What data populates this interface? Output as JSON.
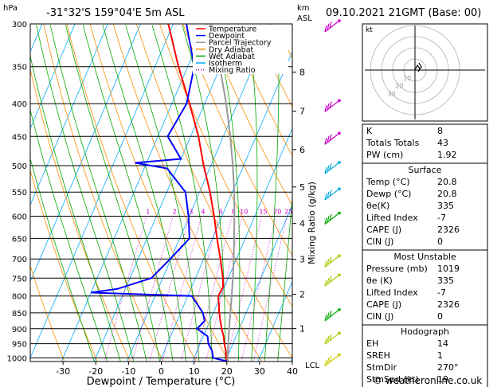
{
  "header": {
    "pressure_unit": "hPa",
    "location": "-31°32'S  159°04'E  5m  ASL",
    "height_unit_km": "km",
    "height_unit_asl": "ASL",
    "datetime": "09.10.2021  21GMT  (Base: 00)"
  },
  "footer": {
    "copyright": "© weatheronline.co.uk"
  },
  "legend": {
    "entries": [
      {
        "label": "Temperature",
        "color": "#ff0000",
        "dash": "solid"
      },
      {
        "label": "Dewpoint",
        "color": "#0000ff",
        "dash": "solid"
      },
      {
        "label": "Parcel Trajectory",
        "color": "#999999",
        "dash": "solid"
      },
      {
        "label": "Dry Adiabat",
        "color": "#ff8c00",
        "dash": "solid"
      },
      {
        "label": "Wet Adiabat",
        "color": "#00aa00",
        "dash": "solid"
      },
      {
        "label": "Isotherm",
        "color": "#00aaff",
        "dash": "solid"
      },
      {
        "label": "Mixing Ratio",
        "color": "#cc00cc",
        "dash": "dotted"
      }
    ]
  },
  "chart_data": {
    "type": "line",
    "chart_kind": "skew-T log-p sounding",
    "xlabel": "Dewpoint / Temperature (°C)",
    "ylabel_right": "Mixing Ratio (g/kg)",
    "xlim": [
      -40,
      40
    ],
    "ylim_hpa": [
      1013,
      300
    ],
    "y_scale": "log",
    "x_ticks": [
      -30,
      -20,
      -10,
      0,
      10,
      20,
      30,
      40
    ],
    "pressure_levels": [
      300,
      350,
      400,
      450,
      500,
      550,
      600,
      650,
      700,
      750,
      800,
      850,
      900,
      950,
      1000
    ],
    "km_ticks": [
      {
        "km": "8",
        "p": 357
      },
      {
        "km": "7",
        "p": 411
      },
      {
        "km": "6",
        "p": 472
      },
      {
        "km": "5",
        "p": 540
      },
      {
        "km": "4",
        "p": 616
      },
      {
        "km": "3",
        "p": 701
      },
      {
        "km": "2",
        "p": 795
      },
      {
        "km": "1",
        "p": 899
      }
    ],
    "lcl_label": "LCL",
    "lcl_p": 1011,
    "mixing_ratio_labels": [
      {
        "label": "1",
        "w": 1
      },
      {
        "label": "2",
        "w": 2
      },
      {
        "label": "3",
        "w": 3
      },
      {
        "label": "4",
        "w": 4
      },
      {
        "label": "6",
        "w": 6
      },
      {
        "label": "8",
        "w": 8
      },
      {
        "label": "10",
        "w": 10
      },
      {
        "label": "15",
        "w": 15
      },
      {
        "label": "20",
        "w": 20
      },
      {
        "label": "25",
        "w": 25
      }
    ],
    "series": [
      {
        "name": "Temperature",
        "color": "#ff0000",
        "points": [
          [
            1013,
            20.8
          ],
          [
            1000,
            19.8
          ],
          [
            975,
            18.8
          ],
          [
            950,
            17.4
          ],
          [
            925,
            16.2
          ],
          [
            900,
            14.6
          ],
          [
            875,
            13.2
          ],
          [
            850,
            11.8
          ],
          [
            825,
            10.6
          ],
          [
            800,
            9.3
          ],
          [
            775,
            9.6
          ],
          [
            750,
            8.4
          ],
          [
            700,
            5.1
          ],
          [
            650,
            1.4
          ],
          [
            600,
            -2.4
          ],
          [
            550,
            -6.8
          ],
          [
            500,
            -12.2
          ],
          [
            450,
            -17.6
          ],
          [
            400,
            -24.6
          ],
          [
            350,
            -32.8
          ],
          [
            300,
            -41.5
          ]
        ]
      },
      {
        "name": "Dewpoint",
        "color": "#0000ff",
        "points": [
          [
            1013,
            20.8
          ],
          [
            1000,
            15.8
          ],
          [
            975,
            14.6
          ],
          [
            950,
            12.5
          ],
          [
            925,
            11.3
          ],
          [
            900,
            7.1
          ],
          [
            875,
            8.4
          ],
          [
            850,
            6.8
          ],
          [
            825,
            4.1
          ],
          [
            800,
            1.2
          ],
          [
            790,
            -30.0
          ],
          [
            780,
            -22.5
          ],
          [
            750,
            -13.5
          ],
          [
            700,
            -10.2
          ],
          [
            650,
            -7.0
          ],
          [
            600,
            -10.2
          ],
          [
            550,
            -14.3
          ],
          [
            505,
            -23.0
          ],
          [
            495,
            -33.5
          ],
          [
            488,
            -20.0
          ],
          [
            450,
            -27.0
          ],
          [
            400,
            -25.5
          ],
          [
            350,
            -28.0
          ],
          [
            300,
            -36.0
          ]
        ]
      },
      {
        "name": "Parcel Trajectory",
        "color": "#999999",
        "points": [
          [
            1013,
            20.8
          ],
          [
            1000,
            20.2
          ],
          [
            950,
            18.6
          ],
          [
            900,
            16.9
          ],
          [
            850,
            15.2
          ],
          [
            800,
            13.4
          ],
          [
            750,
            11.4
          ],
          [
            700,
            9.2
          ],
          [
            650,
            6.6
          ],
          [
            600,
            3.8
          ],
          [
            550,
            0.6
          ],
          [
            500,
            -3.3
          ],
          [
            450,
            -7.9
          ],
          [
            400,
            -13.4
          ],
          [
            350,
            -20.2
          ],
          [
            300,
            -28.6
          ]
        ]
      }
    ],
    "wind_barbs": [
      {
        "p": 300,
        "color": "#cc00cc"
      },
      {
        "p": 400,
        "color": "#cc00cc"
      },
      {
        "p": 450,
        "color": "#cc00cc"
      },
      {
        "p": 500,
        "color": "#00aadd"
      },
      {
        "p": 550,
        "color": "#00aadd"
      },
      {
        "p": 600,
        "color": "#00aa00"
      },
      {
        "p": 700,
        "color": "#aacc00"
      },
      {
        "p": 750,
        "color": "#aacc00"
      },
      {
        "p": 850,
        "color": "#00aa00"
      },
      {
        "p": 925,
        "color": "#aacc00"
      },
      {
        "p": 1000,
        "color": "#cccc00"
      }
    ]
  },
  "hodograph": {
    "label": "kt",
    "ring_labels": [
      "10",
      "20",
      "30"
    ],
    "color": "#000000"
  },
  "indices": {
    "top": [
      {
        "label": "K",
        "value": "8"
      },
      {
        "label": "Totals Totals",
        "value": "43"
      },
      {
        "label": "PW (cm)",
        "value": "1.92"
      }
    ],
    "surface": {
      "title": "Surface",
      "rows": [
        {
          "label": "Temp (°C)",
          "value": "20.8"
        },
        {
          "label": "Dewp (°C)",
          "value": "20.8"
        },
        {
          "label": "θe(K)",
          "value": "335"
        },
        {
          "label": "Lifted Index",
          "value": "-7"
        },
        {
          "label": "CAPE (J)",
          "value": "2326"
        },
        {
          "label": "CIN (J)",
          "value": "0"
        }
      ]
    },
    "most_unstable": {
      "title": "Most Unstable",
      "rows": [
        {
          "label": "Pressure (mb)",
          "value": "1019"
        },
        {
          "label": "θe (K)",
          "value": "335"
        },
        {
          "label": "Lifted Index",
          "value": "-7"
        },
        {
          "label": "CAPE (J)",
          "value": "2326"
        },
        {
          "label": "CIN (J)",
          "value": "0"
        }
      ]
    },
    "hodograph_box": {
      "title": "Hodograph",
      "rows": [
        {
          "label": "EH",
          "value": "14"
        },
        {
          "label": "SREH",
          "value": "1"
        },
        {
          "label": "StmDir",
          "value": "270°"
        },
        {
          "label": "StmSpd (kt)",
          "value": "19"
        }
      ]
    }
  }
}
